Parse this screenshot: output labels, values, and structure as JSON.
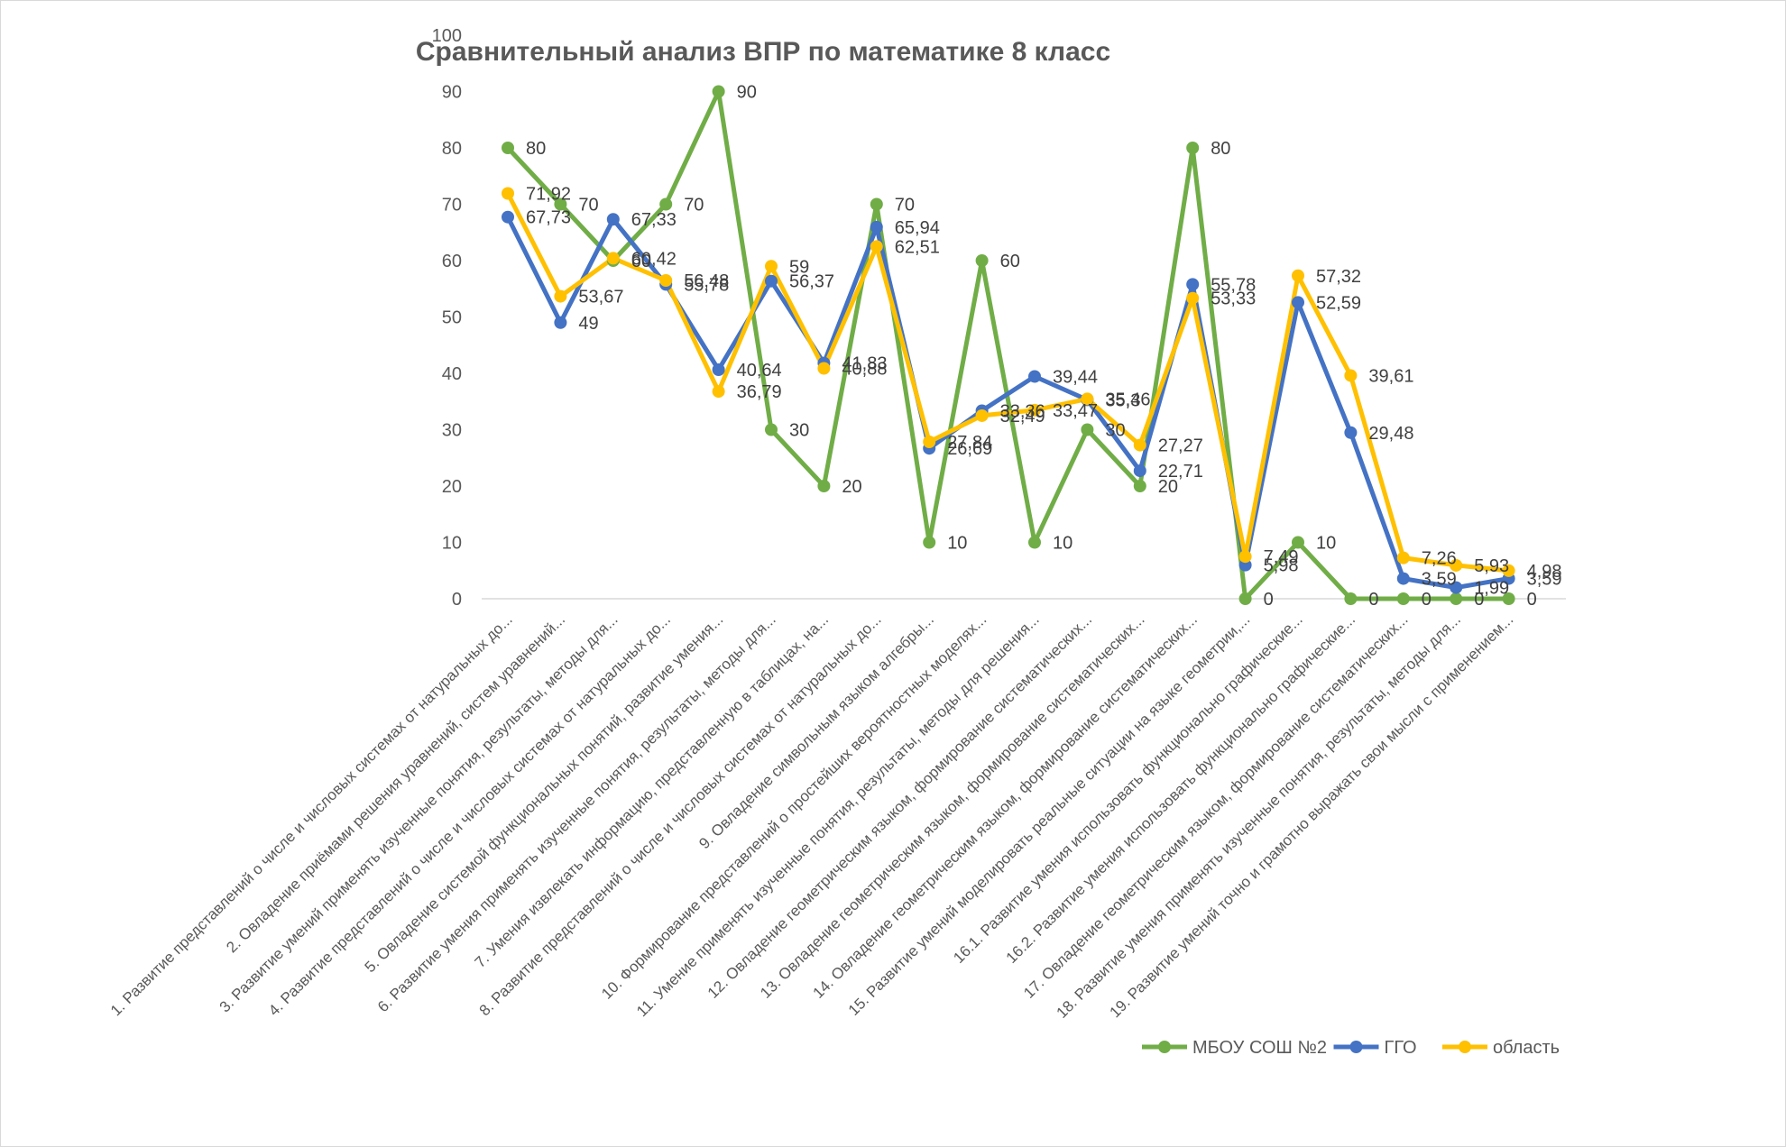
{
  "chart_data": {
    "type": "line",
    "title": "Сравнительный анализ ВПР по математике 8 класс",
    "xlabel": "",
    "ylabel": "",
    "ylim": [
      0,
      100
    ],
    "yticks": [
      0,
      10,
      20,
      30,
      40,
      50,
      60,
      70,
      80,
      90,
      100
    ],
    "grid": false,
    "legend_position": "bottom-right",
    "categories": [
      "1. Развитие представлений о числе и числовых системах от натуральных до...",
      "2. Овладение приёмами решения уравнений, систем уравнений...",
      "3. Развитие умений применять изученные понятия, результаты, методы для...",
      "4. Развитие представлений о числе и числовых системах от натуральных до...",
      "5. Овладение системой функциональных понятий, развитие умения...",
      "6. Развитие умения применять изученные понятия, результаты, методы для...",
      "7. Умения извлекать информацию, представленную в таблицах, на...",
      "8. Развитие представлений о числе и числовых системах от натуральных до...",
      "9. Овладение символьным языком алгебры...",
      "10. Формирование представлений о простейших вероятностных моделях...",
      "11. Умение применять изученные понятия, результаты, методы для решения...",
      "12. Овладение геометрическим языком, формирование систематических...",
      "13. Овладение геометрическим языком, формирование систематических...",
      "14. Овладение геометрическим языком, формирование систематических...",
      "15. Развитие умений моделировать реальные ситуации на языке геометрии,...",
      "16.1. Развитие умения использовать функционально графические...",
      "16.2. Развитие умения использовать функционально графические...",
      "17. Овладение геометрическим языком, формирование систематических...",
      "18. Развитие умения применять изученные понятия, результаты, методы для...",
      "19. Развитие умений точно и грамотно выражать свои мысли с применением..."
    ],
    "series": [
      {
        "name": "МБОУ СОШ №2",
        "color": "#70ad47",
        "values": [
          80,
          70,
          60,
          70,
          90,
          30,
          20,
          70,
          10,
          60,
          10,
          30,
          20,
          80,
          0,
          10,
          0,
          0,
          0,
          0
        ],
        "labels": [
          "80",
          "70",
          "60",
          "70",
          "90",
          "30",
          "20",
          "70",
          "10",
          "60",
          "10",
          "30",
          "20",
          "80",
          "0",
          "10",
          "0",
          "0",
          "0",
          "0"
        ]
      },
      {
        "name": "ГГО",
        "color": "#4472c4",
        "values": [
          67.73,
          49,
          67.33,
          55.78,
          40.64,
          56.37,
          41.83,
          65.94,
          26.69,
          33.36,
          39.44,
          35.3,
          22.71,
          55.78,
          5.98,
          52.59,
          29.48,
          3.59,
          1.99,
          3.59
        ],
        "labels": [
          "67,73",
          "49",
          "67,33",
          "55,78",
          "40,64",
          "56,37",
          "41,83",
          "65,94",
          "26,69",
          "33,36",
          "39,44",
          "35,3",
          "22,71",
          "55,78",
          "5,98",
          "52,59",
          "29,48",
          "3,59",
          "1,99",
          "3,59"
        ]
      },
      {
        "name": "область",
        "color": "#ffc000",
        "values": [
          71.92,
          53.67,
          60.42,
          56.48,
          36.79,
          59,
          40.88,
          62.51,
          27.84,
          32.49,
          33.47,
          35.46,
          27.27,
          53.33,
          7.49,
          57.32,
          39.61,
          7.26,
          5.93,
          4.98
        ],
        "labels": [
          "71,92",
          "53,67",
          "60,42",
          "56,48",
          "36,79",
          "59",
          "40,88",
          "62,51",
          "27,84",
          "32,49",
          "33,47",
          "35,46",
          "27,27",
          "53,33",
          "7,49",
          "57,32",
          "39,61",
          "7,26",
          "5,93",
          "4,98"
        ]
      }
    ]
  }
}
